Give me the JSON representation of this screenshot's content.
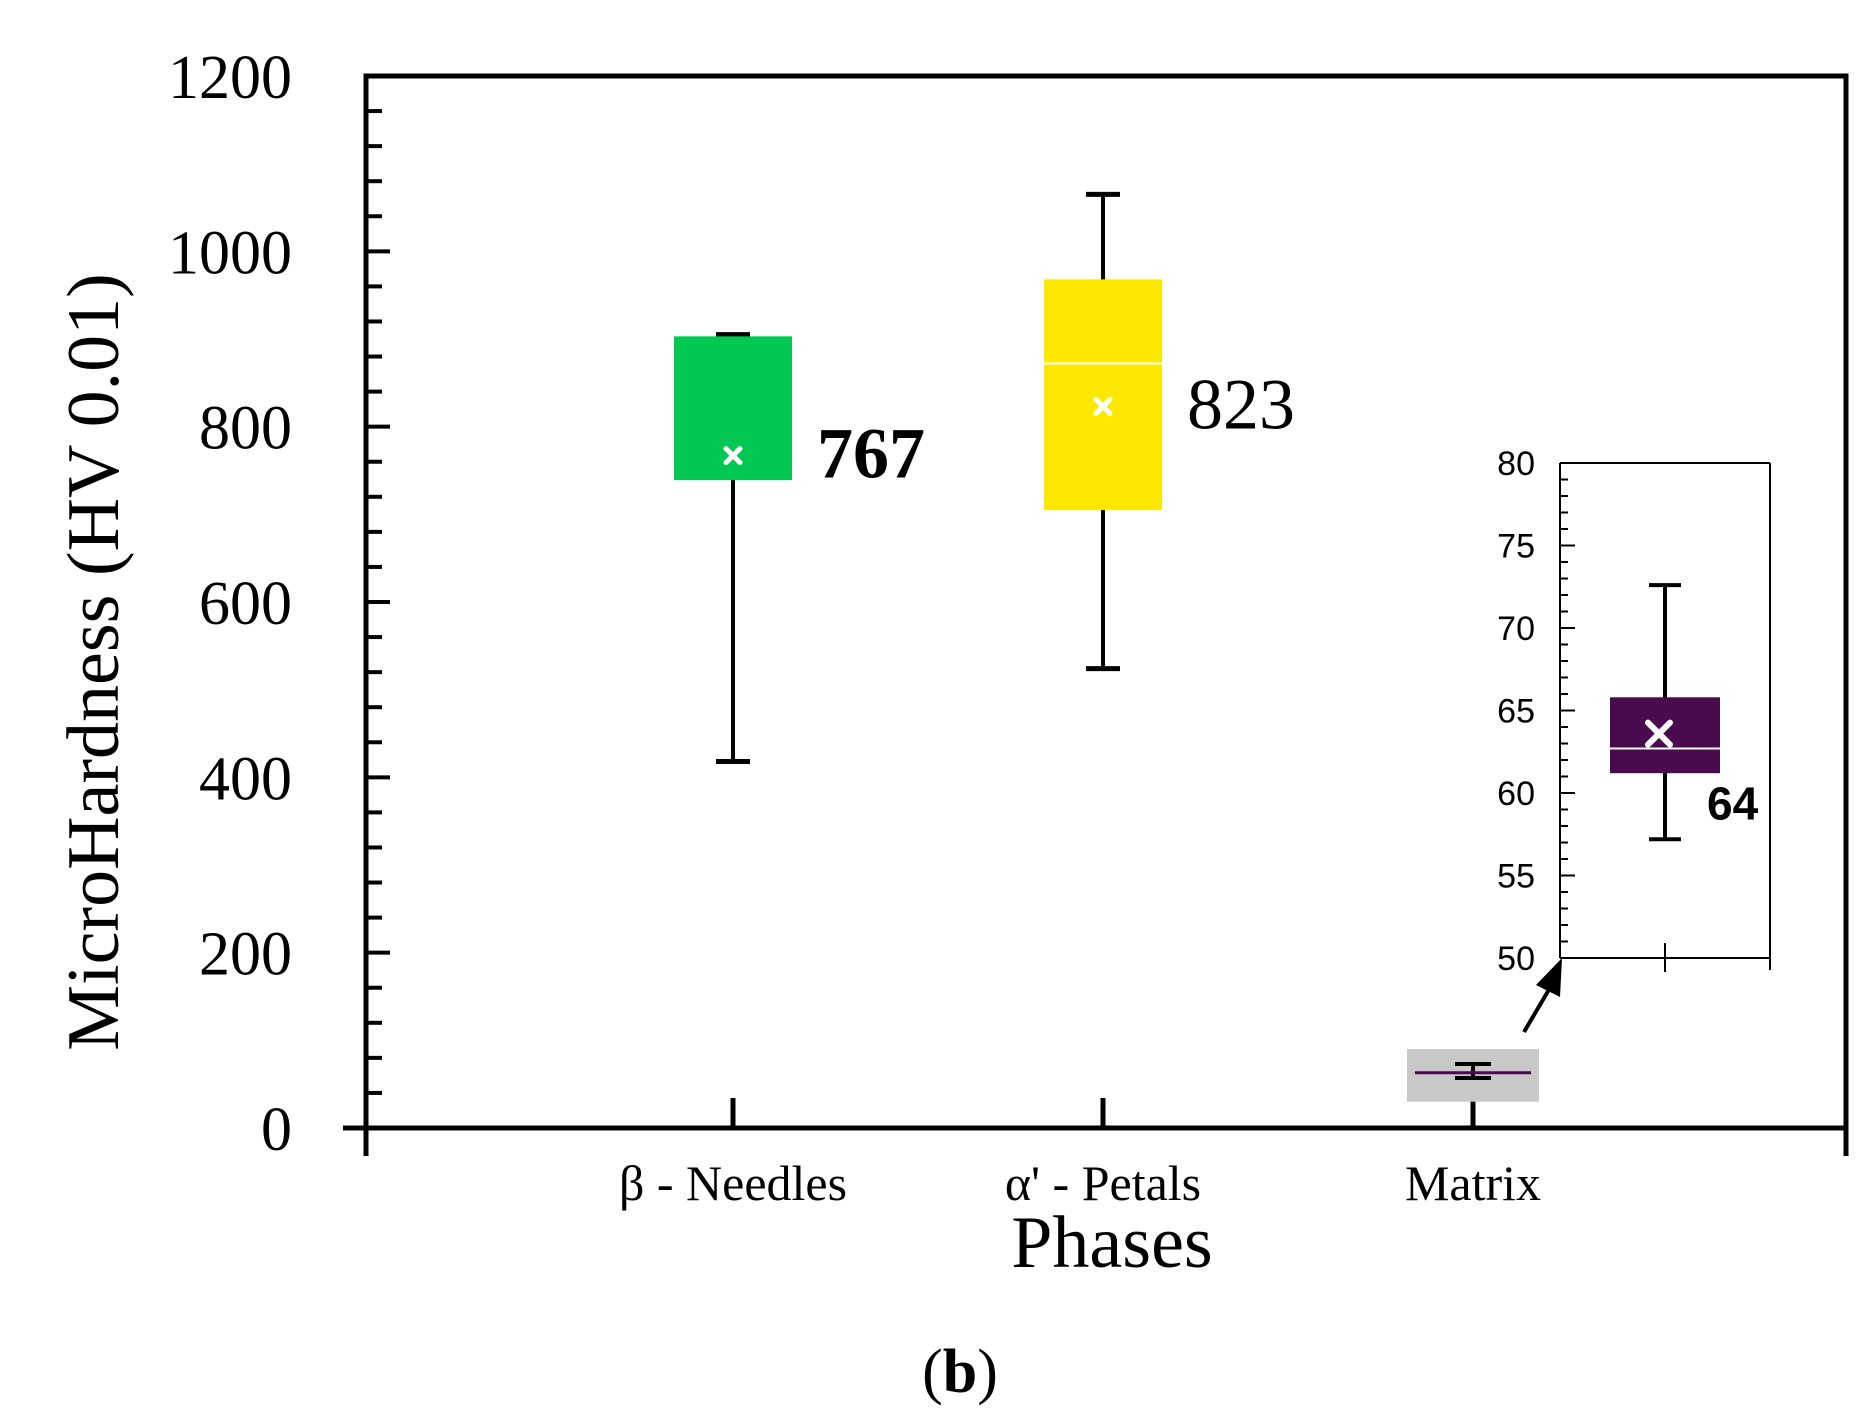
{
  "chart_data": [
    {
      "type": "box",
      "title": "",
      "xlabel": "Phases",
      "ylabel": "MicroHardness (HV 0.01)",
      "ylim": [
        0,
        1200
      ],
      "yticks": [
        "0",
        "200",
        "400",
        "600",
        "800",
        "1000",
        "1200"
      ],
      "categories": [
        "β - Needles",
        "α' - Petals",
        "Matrix"
      ],
      "series": [
        {
          "name": "β - Needles",
          "min": 418,
          "q1": 739,
          "median": 903,
          "q3": 903,
          "max": 905,
          "mean": 767,
          "mean_label": "767",
          "color": "#00c853"
        },
        {
          "name": "α' - Petals",
          "min": 524,
          "q1": 705,
          "median": 872,
          "q3": 968,
          "max": 1065,
          "mean": 823,
          "mean_label": "823",
          "color": "#ffe800"
        },
        {
          "name": "Matrix",
          "min": 57,
          "q1": 61,
          "median": 63,
          "q3": 66,
          "max": 73,
          "mean": 64,
          "mean_label": "",
          "color": "#4a0a4e"
        }
      ],
      "highlight_region": {
        "ymin": 30,
        "ymax": 90,
        "color": "#c8c8c8"
      },
      "panel_label": {
        "prefix": "(",
        "letter": "b",
        "suffix": ")"
      }
    },
    {
      "type": "box",
      "role": "inset",
      "ylim": [
        50,
        80
      ],
      "yticks": [
        "50",
        "55",
        "60",
        "65",
        "70",
        "75",
        "80"
      ],
      "series": [
        {
          "name": "Matrix",
          "min": 57.2,
          "q1": 61.2,
          "median": 62.7,
          "q3": 65.8,
          "max": 72.6,
          "mean": 63.6,
          "mean_label": "64",
          "color": "#4a0a4e"
        }
      ]
    }
  ]
}
